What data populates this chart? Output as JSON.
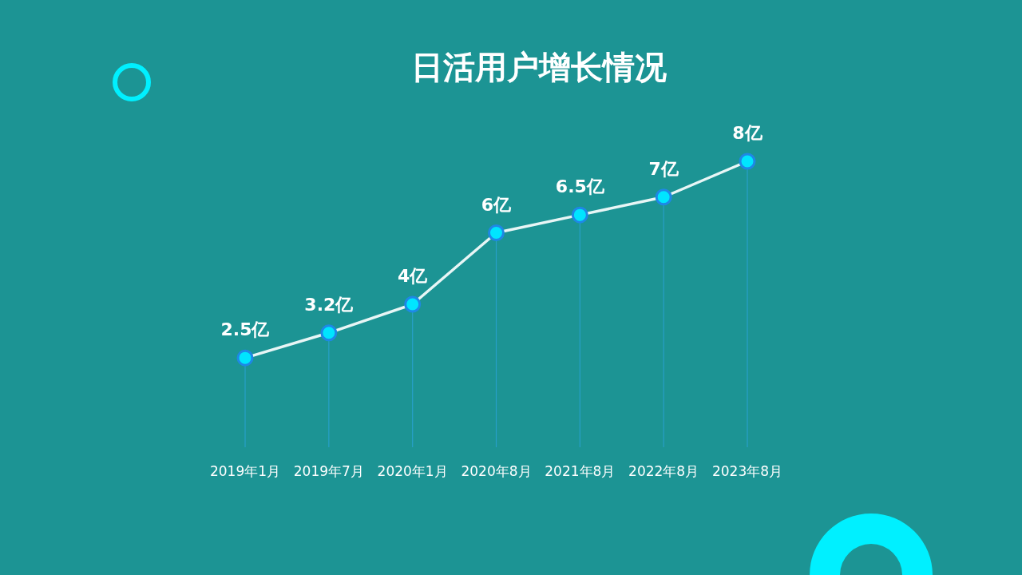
{
  "chart_data": {
    "type": "line",
    "title": "日活用户增长情况",
    "categories": [
      "2019年1月",
      "2019年7月",
      "2020年1月",
      "2020年8月",
      "2021年8月",
      "2022年8月",
      "2023年8月"
    ],
    "values": [
      2.5,
      3.2,
      4,
      6,
      6.5,
      7,
      8
    ],
    "value_labels": [
      "2.5亿",
      "3.2亿",
      "4亿",
      "6亿",
      "6.5亿",
      "7亿",
      "8亿"
    ],
    "color": "#00e5ff",
    "marker": "circle",
    "line_style": "solid",
    "grid": "x"
  }
}
